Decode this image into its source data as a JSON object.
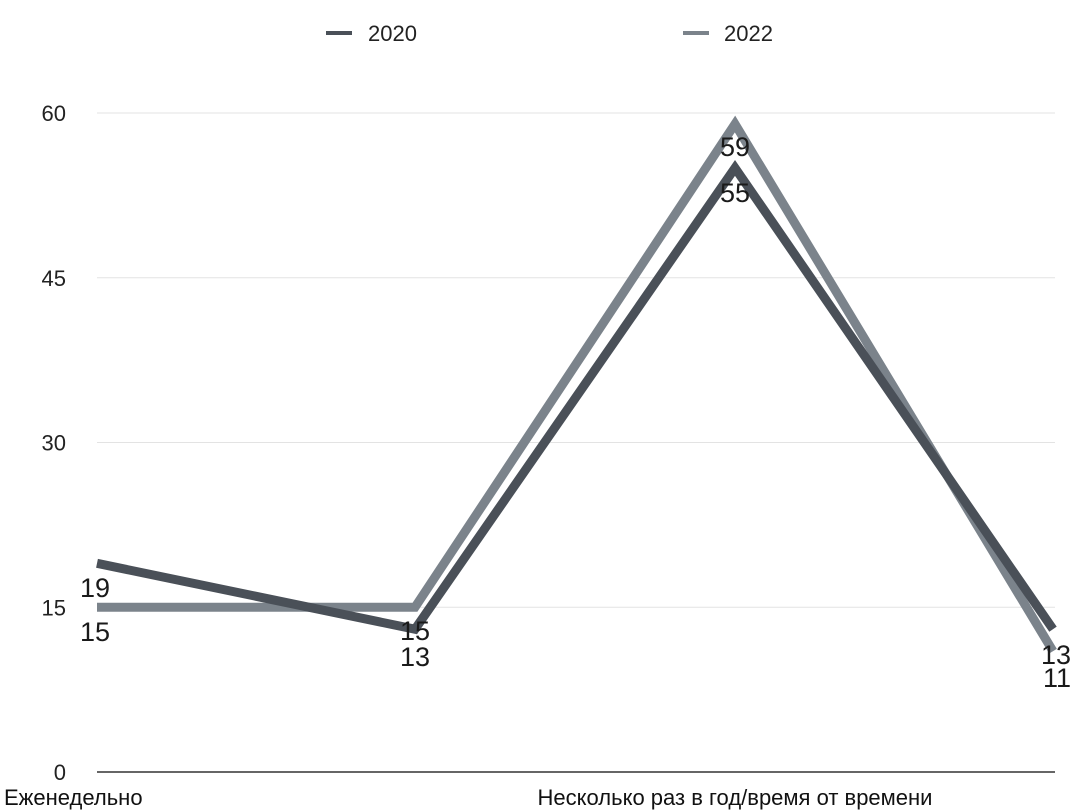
{
  "chart_data": {
    "type": "line",
    "title": "",
    "xlabel": "",
    "ylabel": "",
    "categories": [
      "Еженедельно",
      "",
      "Несколько раз в год/время от времени",
      ""
    ],
    "series": [
      {
        "name": "2020",
        "color": "#4a5058",
        "values": [
          19,
          13,
          55,
          13
        ]
      },
      {
        "name": "2022",
        "color": "#7b838b",
        "values": [
          15,
          15,
          59,
          11
        ]
      }
    ],
    "ylim": [
      0,
      60
    ],
    "yticks": [
      0,
      15,
      30,
      45,
      60
    ],
    "grid": true,
    "legend": "top"
  }
}
